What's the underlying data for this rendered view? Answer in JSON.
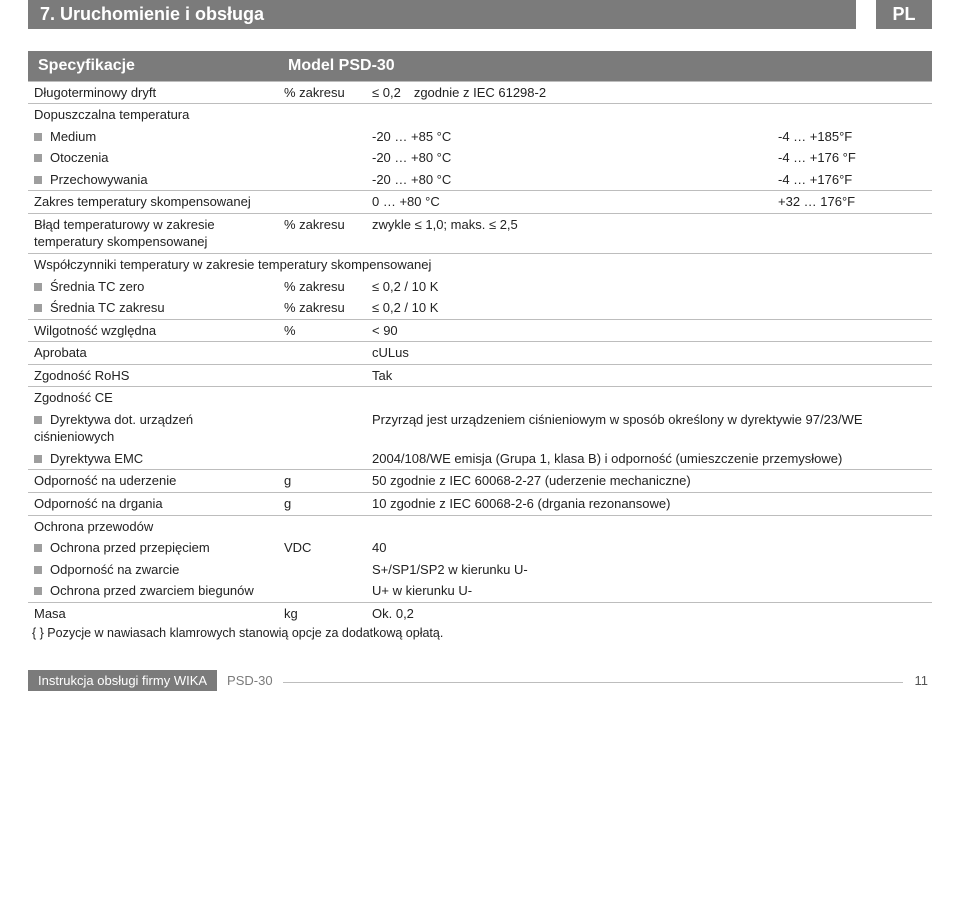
{
  "header": {
    "title": "7. Uruchomienie i obsługa",
    "lang": "PL"
  },
  "table": {
    "hdr_left": "Specyfikacje",
    "hdr_right": "Model PSD-30",
    "rows": {
      "drift_label": "Długoterminowy dryft",
      "drift_unit": "% zakresu",
      "drift_val": "≤ 0,2 zgodnie z IEC 61298-2",
      "temp_label": "Dopuszczalna temperatura",
      "medium_label": "Medium",
      "medium_c": "-20 … +85 °C",
      "medium_f": "-4 … +185°F",
      "amb_label": "Otoczenia",
      "amb_c": "-20 … +80 °C",
      "amb_f": "-4 … +176 °F",
      "stor_label": "Przechowywania",
      "stor_c": "-20 … +80 °C",
      "stor_f": "-4 … +176°F",
      "range_label": "Zakres temperatury skompensowanej",
      "range_c": "0 … +80 °C",
      "range_f": "+32 … 176°F",
      "terr_label": "Błąd temperaturowy w zakresie temperatury skompensowanej",
      "terr_unit": "% zakresu",
      "terr_val": "zwykle ≤ 1,0; maks. ≤ 2,5",
      "coeff_label": "Współczynniki temperatury w zakresie temperatury skompensowanej",
      "tc0_label": "Średnia TC zero",
      "tc0_unit": "% zakresu",
      "tc0_val": "≤ 0,2 / 10 K",
      "tcs_label": "Średnia TC zakresu",
      "tcs_unit": "% zakresu",
      "tcs_val": "≤ 0,2 / 10 K",
      "hum_label": "Wilgotność względna",
      "hum_unit": "%",
      "hum_val": "< 90",
      "appr_label": "Aprobata",
      "appr_val": "cULus",
      "rohs_label": "Zgodność RoHS",
      "rohs_val": "Tak",
      "ce_label": "Zgodność CE",
      "ped_label": "Dyrektywa dot. urządzeń ciśnieniowych",
      "ped_val": "Przyrząd jest urządzeniem ciśnieniowym w sposób określony w dyrektywie 97/23/WE",
      "emc_label": "Dyrektywa EMC",
      "emc_val": "2004/108/WE emisja (Grupa 1, klasa B) i odporność (umieszczenie przemysłowe)",
      "shock_label": "Odporność na uderzenie",
      "shock_unit": "g",
      "shock_val": "50 zgodnie z IEC 60068-2-27 (uderzenie mechaniczne)",
      "vib_label": "Odporność na drgania",
      "vib_unit": "g",
      "vib_val": "10 zgodnie z IEC 60068-2-6  (drgania rezonansowe)",
      "prot_label": "Ochrona przewodów",
      "ov_label": "Ochrona przed przepięciem",
      "ov_unit": "VDC",
      "ov_val": "40",
      "sc_label": "Odporność na zwarcie",
      "sc_val": "S+/SP1/SP2 w kierunku U-",
      "rev_label": "Ochrona przed zwarciem biegunów",
      "rev_val": "U+ w kierunku U-",
      "mass_label": "Masa",
      "mass_unit": "kg",
      "mass_val": "Ok. 0,2"
    },
    "footnote": "{ } Pozycje w nawiasach klamrowych stanowią opcje za dodatkową opłatą."
  },
  "footer": {
    "title": "Instrukcja obsługi firmy WIKA",
    "model": "PSD-30",
    "page": "11"
  }
}
